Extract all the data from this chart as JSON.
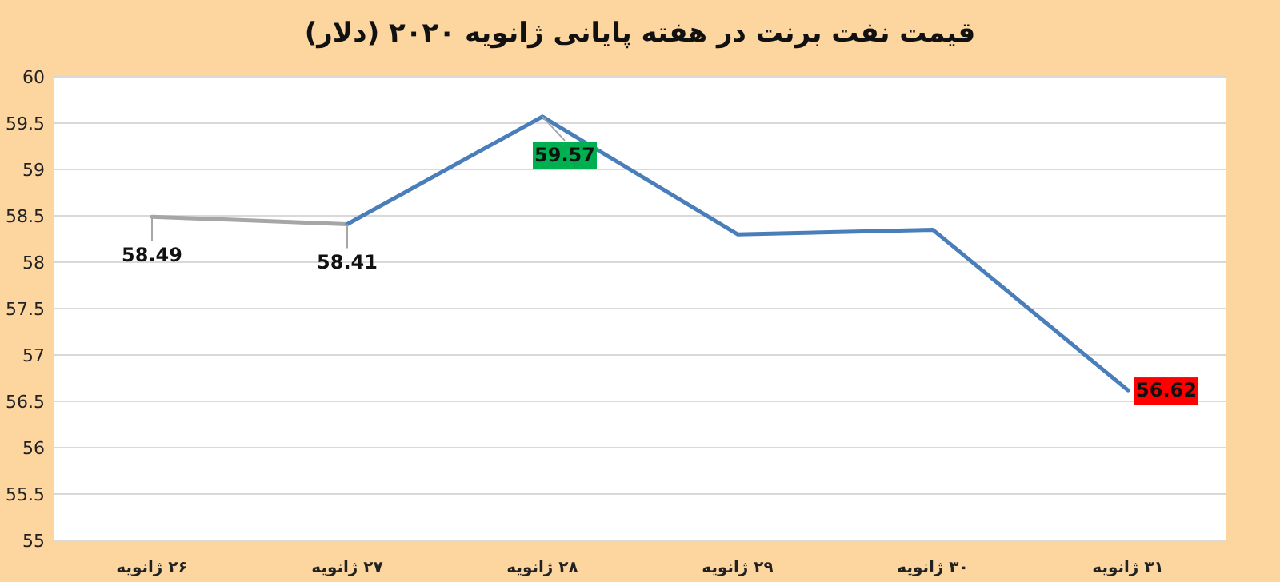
{
  "chart_data": {
    "type": "line",
    "title": "قیمت نفت برنت در هفته پایانی ژانویه ۲۰۲۰ (دلار)",
    "categories": [
      "۲۶ ژانویه",
      "۲۷ ژانویه",
      "۲۸ ژانویه",
      "۲۹ ژانویه",
      "۳۰ ژانویه",
      "۳۱ ژانویه"
    ],
    "series": [
      {
        "color": "#a6a6a6",
        "values": [
          58.49,
          58.41,
          null,
          null,
          null,
          null
        ],
        "value_labels": [
          "58.49",
          null,
          null,
          null,
          null,
          null
        ]
      },
      {
        "color": "#4a7ebb",
        "values": [
          null,
          58.41,
          59.57,
          58.3,
          58.35,
          56.62
        ],
        "value_labels": [
          null,
          "58.41",
          "59.57",
          null,
          null,
          "56.62"
        ]
      }
    ],
    "ylim": [
      55,
      60
    ],
    "yticks": [
      55,
      {
        "value": 55.5,
        "label": "55.5"
      },
      56,
      {
        "value": 56.5,
        "label": "56.5"
      },
      57,
      {
        "value": 57.5,
        "label": "57.5"
      },
      58,
      {
        "value": 58.5,
        "label": "58.5"
      },
      59,
      {
        "value": 59.5,
        "label": "59.5"
      },
      60
    ],
    "grid": "y",
    "marker": "none",
    "line_style": "solid"
  }
}
